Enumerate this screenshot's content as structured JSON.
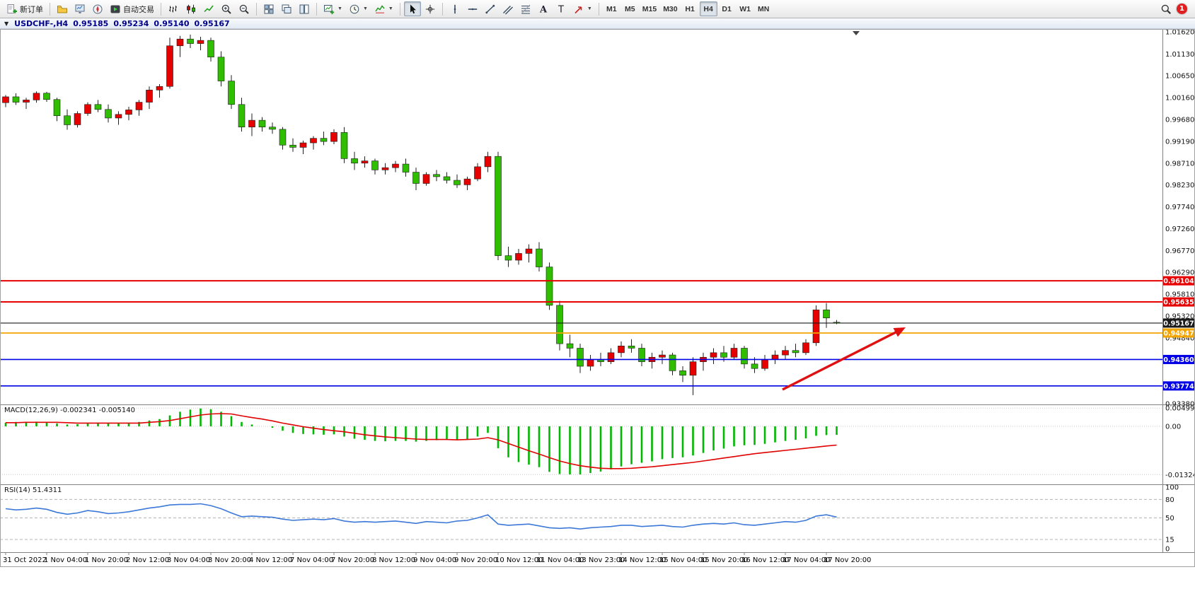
{
  "colors": {
    "bull": "#e60000",
    "bear": "#2fbe00",
    "macd_hist": "#00b800",
    "macd_signal": "#e00000",
    "rsi_line": "#3c78d8",
    "arrow": "#e01010",
    "axis_text": "#111111"
  },
  "toolbar": {
    "new_order_label": "新订单",
    "autotrading_label": "自动交易",
    "timeframes": [
      "M1",
      "M5",
      "M15",
      "M30",
      "H1",
      "H4",
      "D1",
      "W1",
      "MN"
    ],
    "active_timeframe": "H4",
    "notification_count": "1",
    "icon_names": [
      "new-order-icon",
      "profiles-icon",
      "market-watch-icon",
      "navigator-icon",
      "autotrading-icon",
      "bar-chart-icon",
      "candlestick-chart-icon",
      "line-chart-icon",
      "zoom-in-icon",
      "zoom-out-icon",
      "tile-windows-icon",
      "cascade-windows-icon",
      "tile-vertical-icon",
      "new-chart-icon",
      "periods-clock-icon",
      "indicators-icon",
      "cursor-icon",
      "crosshair-icon",
      "vertical-line-icon",
      "horizontal-line-icon",
      "trendline-icon",
      "equidistant-channel-icon",
      "fibonacci-icon",
      "text-icon",
      "label-icon",
      "arrows-icon",
      "search-icon"
    ]
  },
  "chart_header": {
    "symbol": "USDCHF-,H4",
    "open": "0.95185",
    "high": "0.95234",
    "low": "0.95140",
    "close": "0.95167"
  },
  "price_axis": {
    "labels": [
      "1.01620",
      "1.01130",
      "1.00650",
      "1.00160",
      "0.99680",
      "0.99190",
      "0.98710",
      "0.98230",
      "0.97740",
      "0.97260",
      "0.96770",
      "0.96290",
      "0.95810",
      "0.95320",
      "0.94840",
      "0.93380"
    ]
  },
  "levels": [
    {
      "name": "resistance-upper",
      "price": "0.96104",
      "value": 0.96104,
      "color": "#e60000",
      "width": 2
    },
    {
      "name": "resistance-lower",
      "price": "0.95635",
      "value": 0.95635,
      "color": "#e60000",
      "width": 2
    },
    {
      "name": "current-price",
      "price": "0.95167",
      "value": 0.95167,
      "color": "#1a1a1a",
      "width": 1.2
    },
    {
      "name": "pivot-orange",
      "price": "0.94947",
      "value": 0.94947,
      "color": "#f2a500",
      "width": 1.8
    },
    {
      "name": "support-upper",
      "price": "0.94360",
      "value": 0.9436,
      "color": "#0000e6",
      "width": 1.6
    },
    {
      "name": "support-lower",
      "price": "0.93774",
      "value": 0.93774,
      "color": "#0000e6",
      "width": 1.6
    }
  ],
  "macd": {
    "label": "MACD(12,26,9)",
    "value_main": "-0.002341",
    "value_signal": "-0.005140",
    "axis": [
      "0.004996",
      "0.00",
      "-0.013248"
    ],
    "axis_values": [
      0.004996,
      0,
      -0.013248
    ]
  },
  "rsi": {
    "label": "RSI(14)",
    "value": "51.4311",
    "axis": [
      "100",
      "80",
      "50",
      "15",
      "0"
    ],
    "axis_values": [
      100,
      80,
      50,
      15,
      0
    ],
    "levels": [
      80,
      50,
      15
    ]
  },
  "time_axis": [
    "31 Oct 2022",
    "1 Nov 04:00",
    "1 Nov 20:00",
    "2 Nov 12:00",
    "3 Nov 04:00",
    "3 Nov 20:00",
    "4 Nov 12:00",
    "7 Nov 04:00",
    "7 Nov 20:00",
    "8 Nov 12:00",
    "9 Nov 04:00",
    "9 Nov 20:00",
    "10 Nov 12:00",
    "11 Nov 04:00",
    "13 Nov 23:00",
    "14 Nov 12:00",
    "15 Nov 04:00",
    "15 Nov 20:00",
    "16 Nov 12:00",
    "17 Nov 04:00",
    "17 Nov 20:00"
  ],
  "annotations": {
    "trend_arrow": {
      "description": "red up-trend arrow drawn over recent lows",
      "color": "#e01010"
    }
  },
  "chart_data": {
    "type": "candlestick",
    "symbol": "USDCHF",
    "timeframe": "H4",
    "price_range": [
      0.9338,
      1.0162
    ],
    "label_every_n_bars": 4,
    "candles": [
      [
        1.0005,
        1.0022,
        0.9995,
        1.0018
      ],
      [
        1.0018,
        1.0026,
        1.0,
        1.0006
      ],
      [
        1.0006,
        1.0016,
        0.9991,
        1.0011
      ],
      [
        1.0011,
        1.003,
        1.0005,
        1.0026
      ],
      [
        1.0026,
        1.0029,
        1.0007,
        1.0012
      ],
      [
        1.0012,
        1.0016,
        0.9964,
        0.9976
      ],
      [
        0.9976,
        0.999,
        0.9945,
        0.9956
      ],
      [
        0.9956,
        0.9986,
        0.995,
        0.9981
      ],
      [
        0.9981,
        1.0006,
        0.9976,
        1.0001
      ],
      [
        1.0001,
        1.0011,
        0.9984,
        0.999
      ],
      [
        0.999,
        1.0001,
        0.9961,
        0.9971
      ],
      [
        0.9971,
        0.9986,
        0.9956,
        0.9979
      ],
      [
        0.9979,
        0.9996,
        0.9966,
        0.9989
      ],
      [
        0.9989,
        1.0011,
        0.9976,
        1.0006
      ],
      [
        1.0006,
        1.0041,
        0.9991,
        1.0033
      ],
      [
        1.0033,
        1.0046,
        1.0016,
        1.0041
      ],
      [
        1.0041,
        1.0149,
        1.0036,
        1.0131
      ],
      [
        1.0131,
        1.0153,
        1.0106,
        1.0146
      ],
      [
        1.0146,
        1.0156,
        1.0126,
        1.0136
      ],
      [
        1.0136,
        1.0151,
        1.0121,
        1.0143
      ],
      [
        1.0143,
        1.0149,
        1.0096,
        1.0106
      ],
      [
        1.0106,
        1.0119,
        1.0041,
        1.0053
      ],
      [
        1.0053,
        1.0066,
        0.9991,
        1.0001
      ],
      [
        1.0001,
        1.0016,
        0.9941,
        0.9951
      ],
      [
        0.9951,
        0.9981,
        0.9931,
        0.9966
      ],
      [
        0.9966,
        0.9973,
        0.9941,
        0.9951
      ],
      [
        0.9951,
        0.9961,
        0.9936,
        0.9946
      ],
      [
        0.9946,
        0.9951,
        0.9901,
        0.9911
      ],
      [
        0.9911,
        0.9926,
        0.9896,
        0.9906
      ],
      [
        0.9906,
        0.9921,
        0.9891,
        0.9916
      ],
      [
        0.9916,
        0.9931,
        0.9901,
        0.9926
      ],
      [
        0.9926,
        0.9941,
        0.9911,
        0.9919
      ],
      [
        0.9919,
        0.9946,
        0.9913,
        0.9939
      ],
      [
        0.9939,
        0.9951,
        0.9871,
        0.9881
      ],
      [
        0.9881,
        0.9896,
        0.9856,
        0.9871
      ],
      [
        0.9871,
        0.9886,
        0.9861,
        0.9876
      ],
      [
        0.9876,
        0.9881,
        0.9846,
        0.9856
      ],
      [
        0.9856,
        0.9871,
        0.9846,
        0.9861
      ],
      [
        0.9861,
        0.9876,
        0.9851,
        0.9869
      ],
      [
        0.9869,
        0.9881,
        0.9841,
        0.9851
      ],
      [
        0.9851,
        0.9861,
        0.9811,
        0.9826
      ],
      [
        0.9826,
        0.9851,
        0.9821,
        0.9846
      ],
      [
        0.9846,
        0.9856,
        0.9831,
        0.9841
      ],
      [
        0.9841,
        0.9851,
        0.9826,
        0.9833
      ],
      [
        0.9833,
        0.9846,
        0.9816,
        0.9823
      ],
      [
        0.9823,
        0.9841,
        0.9811,
        0.9836
      ],
      [
        0.9836,
        0.9871,
        0.9831,
        0.9863
      ],
      [
        0.9863,
        0.9896,
        0.9851,
        0.9886
      ],
      [
        0.9886,
        0.9896,
        0.9656,
        0.9666
      ],
      [
        0.9666,
        0.9686,
        0.9641,
        0.9656
      ],
      [
        0.9656,
        0.9681,
        0.9646,
        0.9671
      ],
      [
        0.9671,
        0.9691,
        0.9651,
        0.9681
      ],
      [
        0.9681,
        0.9696,
        0.9631,
        0.9641
      ],
      [
        0.9641,
        0.9651,
        0.9546,
        0.9556
      ],
      [
        0.9556,
        0.9566,
        0.9456,
        0.9471
      ],
      [
        0.9471,
        0.9491,
        0.9441,
        0.9461
      ],
      [
        0.9461,
        0.9471,
        0.9406,
        0.9421
      ],
      [
        0.9421,
        0.9446,
        0.9411,
        0.9436
      ],
      [
        0.9436,
        0.9451,
        0.9421,
        0.9431
      ],
      [
        0.9431,
        0.9461,
        0.9426,
        0.9451
      ],
      [
        0.9451,
        0.9476,
        0.9441,
        0.9466
      ],
      [
        0.9466,
        0.9481,
        0.9451,
        0.9461
      ],
      [
        0.9461,
        0.9471,
        0.9421,
        0.9431
      ],
      [
        0.9431,
        0.9451,
        0.9416,
        0.9441
      ],
      [
        0.9441,
        0.9456,
        0.9426,
        0.9446
      ],
      [
        0.9446,
        0.9451,
        0.9401,
        0.9411
      ],
      [
        0.9411,
        0.9421,
        0.9386,
        0.9401
      ],
      [
        0.9401,
        0.9441,
        0.9357,
        0.9431
      ],
      [
        0.9431,
        0.9451,
        0.9411,
        0.9441
      ],
      [
        0.9441,
        0.9461,
        0.9426,
        0.9451
      ],
      [
        0.9451,
        0.9466,
        0.9431,
        0.9441
      ],
      [
        0.9441,
        0.9471,
        0.9436,
        0.9461
      ],
      [
        0.9461,
        0.9466,
        0.9416,
        0.9426
      ],
      [
        0.9426,
        0.9441,
        0.9406,
        0.9416
      ],
      [
        0.9416,
        0.9446,
        0.9411,
        0.9436
      ],
      [
        0.9436,
        0.9456,
        0.9426,
        0.9446
      ],
      [
        0.9446,
        0.9466,
        0.9436,
        0.9456
      ],
      [
        0.9456,
        0.9471,
        0.9441,
        0.9451
      ],
      [
        0.9451,
        0.9481,
        0.9446,
        0.9473
      ],
      [
        0.9473,
        0.9556,
        0.9466,
        0.9546
      ],
      [
        0.9546,
        0.9561,
        0.9506,
        0.9528
      ],
      [
        0.95185,
        0.95234,
        0.9514,
        0.95167
      ]
    ],
    "macd_hist": [
      0.001,
      0.0012,
      0.0011,
      0.0013,
      0.0012,
      0.0008,
      0.0005,
      0.0006,
      0.0009,
      0.001,
      0.0008,
      0.0008,
      0.0009,
      0.0012,
      0.0016,
      0.002,
      0.003,
      0.004,
      0.0046,
      0.0049,
      0.0047,
      0.004,
      0.0028,
      0.0012,
      0.0005,
      0.0,
      -0.0004,
      -0.0012,
      -0.0018,
      -0.0021,
      -0.0022,
      -0.0023,
      -0.0022,
      -0.0028,
      -0.0034,
      -0.0037,
      -0.004,
      -0.0041,
      -0.004,
      -0.004,
      -0.0042,
      -0.004,
      -0.0038,
      -0.0037,
      -0.0037,
      -0.0035,
      -0.0028,
      -0.0018,
      -0.006,
      -0.0085,
      -0.0098,
      -0.0105,
      -0.0112,
      -0.0125,
      -0.0131,
      -0.0132,
      -0.0132,
      -0.0128,
      -0.0124,
      -0.0118,
      -0.011,
      -0.0104,
      -0.01,
      -0.0096,
      -0.009,
      -0.0087,
      -0.0085,
      -0.008,
      -0.0073,
      -0.0066,
      -0.0061,
      -0.0055,
      -0.0052,
      -0.0051,
      -0.0048,
      -0.0044,
      -0.004,
      -0.0037,
      -0.0033,
      -0.0026,
      -0.0024,
      -0.002341
    ],
    "macd_signal": [
      0.001,
      0.001,
      0.0011,
      0.0011,
      0.0011,
      0.0011,
      0.001,
      0.0009,
      0.0009,
      0.0009,
      0.0009,
      0.0009,
      0.0009,
      0.0009,
      0.0011,
      0.0013,
      0.0016,
      0.0021,
      0.0026,
      0.0031,
      0.0034,
      0.0035,
      0.0034,
      0.0029,
      0.0024,
      0.002,
      0.0015,
      0.0009,
      0.0004,
      -0.0001,
      -0.0005,
      -0.0009,
      -0.0012,
      -0.0015,
      -0.0019,
      -0.0023,
      -0.0026,
      -0.0029,
      -0.0031,
      -0.0033,
      -0.0035,
      -0.0036,
      -0.0036,
      -0.0036,
      -0.0037,
      -0.0036,
      -0.0035,
      -0.0031,
      -0.0037,
      -0.0047,
      -0.0057,
      -0.0067,
      -0.0076,
      -0.0086,
      -0.0095,
      -0.0102,
      -0.0108,
      -0.0112,
      -0.0115,
      -0.0116,
      -0.0116,
      -0.0115,
      -0.0113,
      -0.0111,
      -0.0108,
      -0.0105,
      -0.0102,
      -0.0099,
      -0.0095,
      -0.0091,
      -0.0087,
      -0.0083,
      -0.0079,
      -0.0075,
      -0.0072,
      -0.0069,
      -0.0066,
      -0.0063,
      -0.006,
      -0.0057,
      -0.0054,
      -0.00514
    ],
    "rsi_values": [
      65,
      63,
      64,
      66,
      64,
      59,
      56,
      58,
      62,
      60,
      57,
      58,
      60,
      63,
      66,
      68,
      71,
      72,
      72,
      73,
      70,
      65,
      58,
      52,
      53,
      52,
      51,
      48,
      46,
      47,
      48,
      47,
      49,
      45,
      43,
      44,
      43,
      44,
      45,
      43,
      41,
      44,
      43,
      42,
      45,
      46,
      50,
      55,
      40,
      38,
      39,
      40,
      37,
      34,
      33,
      34,
      32,
      34,
      35,
      36,
      38,
      38,
      36,
      37,
      38,
      36,
      35,
      38,
      40,
      41,
      40,
      42,
      39,
      38,
      40,
      42,
      44,
      43,
      46,
      53,
      55,
      51.4311
    ]
  }
}
